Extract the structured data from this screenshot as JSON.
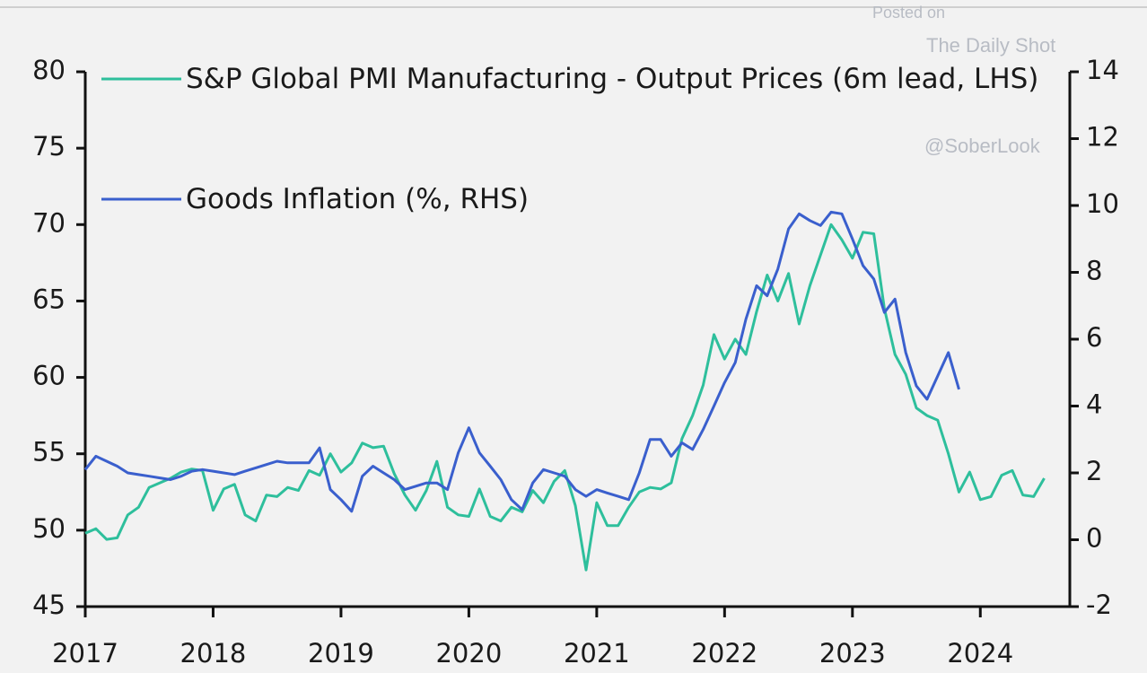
{
  "chart_data": {
    "type": "line",
    "annotations": [
      "Posted on",
      "The Daily Shot",
      "@SoberLook"
    ],
    "x": [
      2017,
      2017.083,
      2017.167,
      2017.25,
      2017.333,
      2017.417,
      2017.5,
      2017.583,
      2017.667,
      2017.75,
      2017.833,
      2017.917,
      2018,
      2018.083,
      2018.167,
      2018.25,
      2018.333,
      2018.417,
      2018.5,
      2018.583,
      2018.667,
      2018.75,
      2018.833,
      2018.917,
      2019,
      2019.083,
      2019.167,
      2019.25,
      2019.333,
      2019.417,
      2019.5,
      2019.583,
      2019.667,
      2019.75,
      2019.833,
      2019.917,
      2020,
      2020.083,
      2020.167,
      2020.25,
      2020.333,
      2020.417,
      2020.5,
      2020.583,
      2020.667,
      2020.75,
      2020.833,
      2020.917,
      2021,
      2021.083,
      2021.167,
      2021.25,
      2021.333,
      2021.417,
      2021.5,
      2021.583,
      2021.667,
      2021.75,
      2021.833,
      2021.917,
      2022,
      2022.083,
      2022.167,
      2022.25,
      2022.333,
      2022.417,
      2022.5,
      2022.583,
      2022.667,
      2022.75,
      2022.833,
      2022.917,
      2023,
      2023.083,
      2023.167,
      2023.25,
      2023.333,
      2023.417,
      2023.5,
      2023.583,
      2023.667,
      2023.75,
      2023.833,
      2023.917,
      2024,
      2024.083,
      2024.167,
      2024.25,
      2024.333,
      2024.417,
      2024.5
    ],
    "series": [
      {
        "name": "S&P Global PMI Manufacturing - Output Prices (6m lead, LHS)",
        "color": "#2ebf9c",
        "axis": "y",
        "values": [
          49.8,
          50.1,
          49.4,
          49.5,
          51.0,
          51.5,
          52.8,
          53.1,
          53.4,
          53.8,
          54.0,
          53.9,
          51.3,
          52.7,
          53.0,
          51.0,
          50.6,
          52.3,
          52.2,
          52.8,
          52.6,
          53.9,
          53.6,
          55.0,
          53.8,
          54.4,
          55.7,
          55.4,
          55.5,
          53.7,
          52.3,
          51.3,
          52.6,
          54.5,
          51.5,
          51.0,
          50.9,
          52.7,
          50.9,
          50.6,
          51.5,
          51.2,
          52.6,
          51.8,
          53.2,
          53.9,
          51.6,
          47.4,
          51.8,
          50.3,
          50.3,
          51.5,
          52.5,
          52.8,
          52.7,
          53.1,
          56.0,
          57.5,
          59.5,
          62.8,
          61.2,
          62.5,
          61.5,
          64.3,
          66.7,
          65.0,
          66.8,
          63.5,
          66.0,
          68.0,
          70.0,
          69.0,
          67.8,
          69.5,
          69.4,
          64.5,
          61.5,
          60.2,
          58.0,
          57.5,
          57.2,
          55.0,
          52.5,
          53.8,
          52.0,
          52.2,
          53.6,
          53.9,
          52.3,
          52.2,
          53.4
        ]
      },
      {
        "name": "Goods Inflation (%, RHS)",
        "color": "#3a5fcd",
        "axis": "y2",
        "values": [
          2.1,
          2.5,
          2.35,
          2.2,
          2.0,
          1.95,
          1.9,
          1.85,
          1.8,
          1.9,
          2.05,
          2.1,
          2.05,
          2.0,
          1.95,
          2.05,
          2.15,
          2.25,
          2.35,
          2.3,
          2.3,
          2.3,
          2.75,
          1.5,
          1.2,
          0.85,
          1.9,
          2.2,
          2.0,
          1.8,
          1.5,
          1.6,
          1.7,
          1.7,
          1.5,
          2.6,
          3.35,
          2.6,
          2.2,
          1.8,
          1.2,
          0.9,
          1.7,
          2.1,
          2.0,
          1.9,
          1.5,
          1.3,
          1.5,
          1.4,
          1.3,
          1.2,
          2.0,
          3.0,
          3.0,
          2.5,
          2.9,
          2.7,
          3.3,
          4.0,
          4.7,
          5.3,
          6.6,
          7.6,
          7.3,
          8.1,
          9.3,
          9.75,
          9.55,
          9.4,
          9.8,
          9.75,
          9.0,
          8.2,
          7.8,
          6.8,
          7.2,
          5.6,
          4.6,
          4.2,
          4.9,
          5.6,
          4.5,
          null,
          null,
          null,
          null,
          null,
          null,
          null,
          null
        ]
      }
    ],
    "xlim": [
      2017,
      2024.7
    ],
    "xticks": [
      2017,
      2018,
      2019,
      2020,
      2021,
      2022,
      2023,
      2024
    ],
    "ylim": [
      45,
      80
    ],
    "yticks": [
      45,
      50,
      55,
      60,
      65,
      70,
      75,
      80
    ],
    "y2lim": [
      -2,
      14
    ],
    "y2ticks": [
      -2,
      0,
      2,
      4,
      6,
      8,
      10,
      12,
      14
    ],
    "legend": "top-left"
  }
}
